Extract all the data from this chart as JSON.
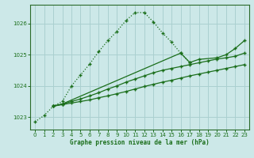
{
  "title": "Graphe pression niveau de la mer (hPa)",
  "bg_color": "#cce8e8",
  "grid_color": "#aad0d0",
  "line_color": "#1a6e1a",
  "xlim": [
    -0.5,
    23.5
  ],
  "ylim": [
    1022.6,
    1026.6
  ],
  "yticks": [
    1023,
    1024,
    1025,
    1026
  ],
  "xticks": [
    0,
    1,
    2,
    3,
    4,
    5,
    6,
    7,
    8,
    9,
    10,
    11,
    12,
    13,
    14,
    15,
    16,
    17,
    18,
    19,
    20,
    21,
    22,
    23
  ],
  "line1_x": [
    0,
    1,
    2,
    3,
    4,
    5,
    6,
    7,
    8,
    9,
    10,
    11,
    12,
    13,
    14,
    15,
    16,
    17
  ],
  "line1_y": [
    1022.85,
    1023.05,
    1023.35,
    1023.5,
    1024.0,
    1024.35,
    1024.7,
    1025.1,
    1025.45,
    1025.75,
    1026.1,
    1026.35,
    1026.35,
    1026.05,
    1025.7,
    1025.4,
    1025.05,
    1024.75
  ],
  "line2_x": [
    2,
    3,
    4,
    5,
    6,
    7,
    8,
    9,
    10,
    11,
    12,
    13,
    14,
    15,
    16,
    17,
    18,
    19,
    20,
    21,
    22,
    23
  ],
  "line2_y": [
    1023.35,
    1023.4,
    1023.45,
    1023.5,
    1023.55,
    1023.62,
    1023.68,
    1023.75,
    1023.82,
    1023.9,
    1023.98,
    1024.05,
    1024.12,
    1024.18,
    1024.25,
    1024.32,
    1024.38,
    1024.44,
    1024.5,
    1024.56,
    1024.62,
    1024.68
  ],
  "line3_x": [
    2,
    3,
    4,
    5,
    6,
    7,
    8,
    9,
    10,
    11,
    12,
    13,
    14,
    15,
    16,
    17,
    18,
    19,
    20,
    21,
    22,
    23
  ],
  "line3_y": [
    1023.35,
    1023.42,
    1023.5,
    1023.58,
    1023.68,
    1023.78,
    1023.9,
    1024.0,
    1024.12,
    1024.22,
    1024.32,
    1024.42,
    1024.5,
    1024.56,
    1024.62,
    1024.68,
    1024.74,
    1024.8,
    1024.86,
    1024.9,
    1024.95,
    1025.05
  ],
  "line4_x": [
    2,
    3,
    16,
    17,
    18,
    20,
    21,
    22,
    23
  ],
  "line4_y": [
    1023.35,
    1023.42,
    1025.05,
    1024.75,
    1024.85,
    1024.9,
    1025.0,
    1025.2,
    1025.45
  ]
}
